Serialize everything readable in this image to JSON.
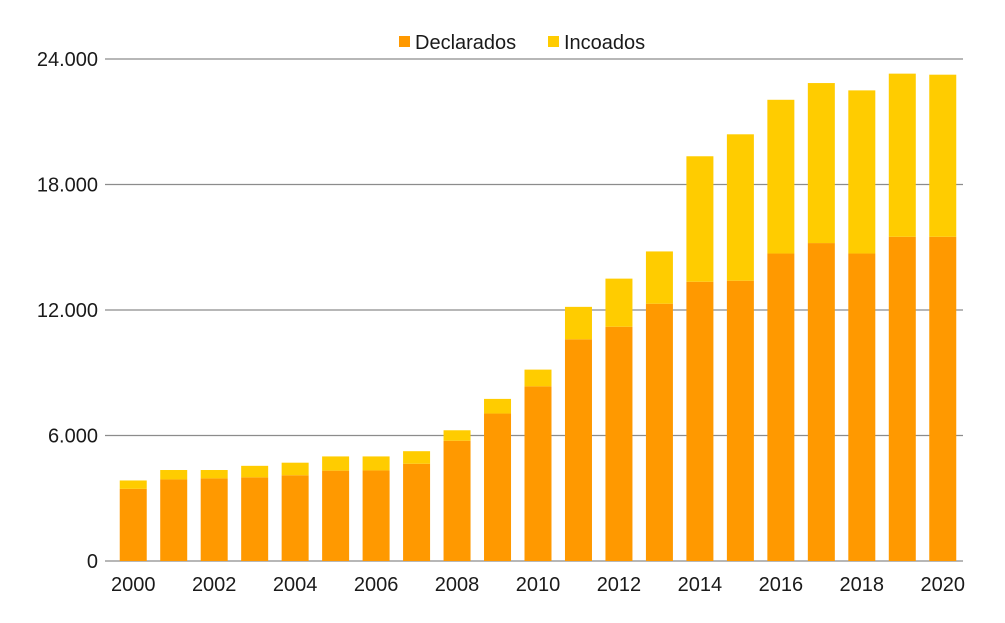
{
  "chart_data": {
    "type": "bar",
    "stacked": true,
    "categories": [
      "2000",
      "2001",
      "2002",
      "2003",
      "2004",
      "2005",
      "2006",
      "2007",
      "2008",
      "2009",
      "2010",
      "2011",
      "2012",
      "2013",
      "2014",
      "2015",
      "2016",
      "2017",
      "2018",
      "2019",
      "2020"
    ],
    "x_tick_labels": [
      "2000",
      "2002",
      "2004",
      "2006",
      "2008",
      "2010",
      "2012",
      "2014",
      "2016",
      "2018",
      "2020"
    ],
    "series": [
      {
        "name": "Declarados",
        "color": "#FF9900",
        "values": [
          3450,
          3900,
          3950,
          4000,
          4100,
          4320,
          4330,
          4650,
          5750,
          7050,
          8350,
          10600,
          11200,
          12300,
          13350,
          13400,
          14700,
          15200,
          14700,
          15500,
          15500
        ]
      },
      {
        "name": "Incoados",
        "color": "#FFCC00",
        "values": [
          400,
          450,
          400,
          550,
          600,
          680,
          670,
          600,
          500,
          700,
          800,
          1550,
          2300,
          2500,
          6000,
          7000,
          7350,
          7650,
          7800,
          7800,
          7750
        ]
      }
    ],
    "y_ticks": [
      "0",
      "6.000",
      "12.000",
      "18.000",
      "24.000"
    ],
    "y_tick_values": [
      0,
      6000,
      12000,
      18000,
      24000
    ],
    "ylim": [
      0,
      24000
    ],
    "grid": true,
    "legend_position": "top-center",
    "title": "",
    "xlabel": "",
    "ylabel": ""
  }
}
